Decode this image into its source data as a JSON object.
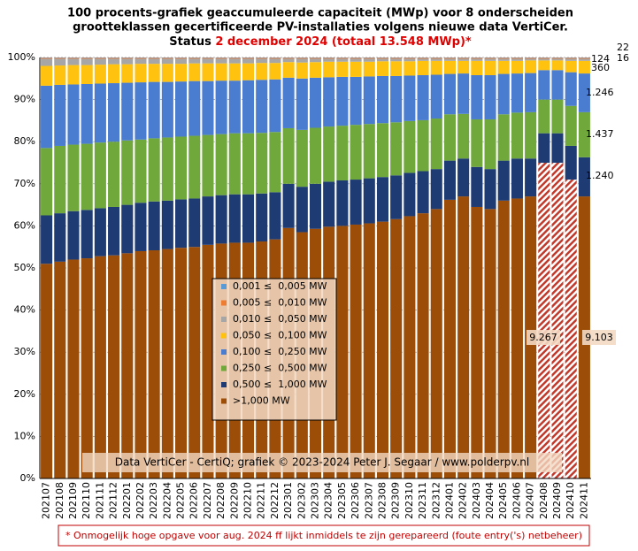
{
  "chart_data": {
    "type": "stacked_bar_100",
    "title": [
      "100 procents-grafiek geaccumuleerde capaciteit (MWp) voor 8 onderscheiden",
      "grootteklassen gecertificeerde PV-installaties volgens nieuwe data VertiCer."
    ],
    "subtitle_prefix": "Status ",
    "subtitle_highlight": "2 december 2024 (totaal 13.548 MWp)*",
    "watermark": "Data VertiCer - CertiQ; grafiek © 2023-2024 Peter J. Segaar / www.polderpv.nl",
    "footnote": "* Onmogelijk hoge opgave voor aug. 2024 ff lijkt inmiddels te zijn gerepareerd (foute entry('s) netbeheer)",
    "categories": [
      "202107",
      "202108",
      "202109",
      "202110",
      "202111",
      "202112",
      "202201",
      "202202",
      "202203",
      "202204",
      "202205",
      "202206",
      "202207",
      "202208",
      "202209",
      "202210",
      "202211",
      "202212",
      "202301",
      "202302",
      "202303",
      "202304",
      "202305",
      "202306",
      "202307",
      "202308",
      "202309",
      "202310",
      "202311",
      "202312",
      "202401",
      "202402",
      "202403",
      "202404",
      "202405",
      "202406",
      "202407",
      "202408",
      "202409",
      "202410",
      "202411"
    ],
    "series": [
      {
        "name": ">1,000 MW",
        "color": "#9c4e08",
        "values": [
          51.0,
          51.5,
          52.0,
          52.3,
          52.8,
          53.0,
          53.5,
          54.0,
          54.2,
          54.5,
          54.8,
          55.0,
          55.5,
          55.8,
          56.0,
          56.0,
          56.3,
          56.8,
          59.5,
          58.5,
          59.3,
          59.8,
          60.0,
          60.3,
          60.6,
          61.0,
          61.6,
          62.3,
          63.0,
          64.0,
          66.2,
          67.0,
          64.5,
          64.0,
          66.0,
          66.5,
          67.0,
          75.0,
          75.0,
          71.0,
          67.0
        ]
      },
      {
        "name": "0,500 ≤  1,000 MW",
        "color": "#1f3b73",
        "values": [
          11.5,
          11.5,
          11.5,
          11.5,
          11.4,
          11.5,
          11.5,
          11.5,
          11.6,
          11.5,
          11.5,
          11.5,
          11.5,
          11.5,
          11.5,
          11.5,
          11.4,
          11.2,
          10.5,
          10.8,
          10.7,
          10.7,
          10.8,
          10.7,
          10.7,
          10.6,
          10.4,
          10.3,
          10.0,
          9.5,
          9.3,
          9.0,
          9.5,
          9.5,
          9.5,
          9.5,
          9.0,
          7.0,
          7.0,
          8.0,
          9.3
        ]
      },
      {
        "name": "0,250 ≤  0,500 MW",
        "color": "#70a83c",
        "values": [
          16.0,
          16.0,
          15.8,
          15.7,
          15.6,
          15.5,
          15.3,
          15.0,
          15.0,
          15.0,
          14.9,
          14.9,
          14.6,
          14.5,
          14.5,
          14.5,
          14.4,
          14.3,
          13.2,
          13.5,
          13.3,
          13.1,
          13.0,
          13.0,
          12.9,
          12.8,
          12.6,
          12.3,
          12.1,
          12.0,
          11.0,
          10.6,
          11.3,
          11.8,
          11.0,
          10.9,
          11.0,
          8.0,
          8.0,
          9.5,
          10.7
        ]
      },
      {
        "name": "0,100 ≤  0,250 MW",
        "color": "#4a7cd0",
        "values": [
          14.8,
          14.5,
          14.3,
          14.2,
          14.0,
          13.9,
          13.7,
          13.6,
          13.4,
          13.2,
          13.1,
          13.0,
          12.8,
          12.7,
          12.5,
          12.6,
          12.6,
          12.5,
          12.0,
          12.2,
          11.9,
          11.7,
          11.6,
          11.4,
          11.3,
          11.2,
          11.0,
          10.8,
          10.7,
          10.4,
          9.6,
          9.6,
          10.5,
          10.5,
          9.6,
          9.3,
          9.3,
          7.0,
          7.0,
          8.0,
          9.2
        ]
      },
      {
        "name": "0,050 ≤  0,100 MW",
        "color": "#ffc20e",
        "values": [
          4.7,
          4.6,
          4.6,
          4.5,
          4.5,
          4.5,
          4.4,
          4.4,
          4.3,
          4.3,
          4.2,
          4.2,
          4.2,
          4.1,
          4.1,
          4.0,
          4.0,
          3.9,
          3.7,
          3.8,
          3.7,
          3.7,
          3.6,
          3.6,
          3.5,
          3.5,
          3.5,
          3.4,
          3.4,
          3.3,
          3.1,
          3.0,
          3.4,
          3.4,
          3.1,
          3.0,
          3.0,
          2.3,
          2.3,
          2.7,
          3.0
        ]
      },
      {
        "name": "0,010 ≤  0,050 MW",
        "color": "#a6a6a6",
        "values": [
          1.7,
          1.6,
          1.5,
          1.5,
          1.4,
          1.3,
          1.3,
          1.2,
          1.2,
          1.2,
          1.2,
          1.1,
          1.1,
          1.1,
          1.1,
          1.1,
          1.0,
          1.0,
          0.8,
          0.9,
          0.8,
          0.7,
          0.7,
          0.7,
          0.7,
          0.6,
          0.6,
          0.6,
          0.5,
          0.5,
          0.5,
          0.5,
          0.5,
          0.5,
          0.5,
          0.5,
          0.4,
          0.4,
          0.4,
          0.5,
          0.5
        ]
      },
      {
        "name": "0,005 ≤  0,010 MW",
        "color": "#ed7d31",
        "values": [
          0.2,
          0.2,
          0.2,
          0.2,
          0.2,
          0.2,
          0.2,
          0.2,
          0.2,
          0.2,
          0.2,
          0.2,
          0.2,
          0.2,
          0.2,
          0.2,
          0.2,
          0.2,
          0.2,
          0.2,
          0.2,
          0.2,
          0.2,
          0.2,
          0.2,
          0.2,
          0.2,
          0.2,
          0.2,
          0.2,
          0.2,
          0.2,
          0.2,
          0.2,
          0.2,
          0.2,
          0.2,
          0.2,
          0.2,
          0.2,
          0.2
        ]
      },
      {
        "name": "0,001 ≤  0,005 MW",
        "color": "#5b9bd5",
        "values": [
          0.1,
          0.1,
          0.1,
          0.1,
          0.1,
          0.1,
          0.1,
          0.1,
          0.1,
          0.1,
          0.1,
          0.1,
          0.1,
          0.1,
          0.1,
          0.1,
          0.1,
          0.1,
          0.1,
          0.1,
          0.1,
          0.1,
          0.1,
          0.1,
          0.1,
          0.1,
          0.1,
          0.1,
          0.1,
          0.1,
          0.1,
          0.1,
          0.1,
          0.1,
          0.1,
          0.1,
          0.1,
          0.1,
          0.1,
          0.1,
          0.1
        ]
      }
    ],
    "hatched_categories": [
      "202408",
      "202409",
      "202410"
    ],
    "annotations": [
      "9.267",
      "9.103",
      "22",
      "16",
      "124",
      "360",
      "1.246",
      "1.437",
      "1.240"
    ],
    "ylim": [
      0,
      100
    ],
    "yticks": [
      {
        "value": 0,
        "label": "0%"
      },
      {
        "value": 10,
        "label": "10%"
      },
      {
        "value": 20,
        "label": "20%"
      },
      {
        "value": 30,
        "label": "30%"
      },
      {
        "value": 40,
        "label": "40%"
      },
      {
        "value": 50,
        "label": "50%"
      },
      {
        "value": 60,
        "label": "60%"
      },
      {
        "value": 70,
        "label": "70%"
      },
      {
        "value": 80,
        "label": "80%"
      },
      {
        "value": 90,
        "label": "90%"
      },
      {
        "value": 100,
        "label": "100%"
      }
    ],
    "grid": true
  }
}
